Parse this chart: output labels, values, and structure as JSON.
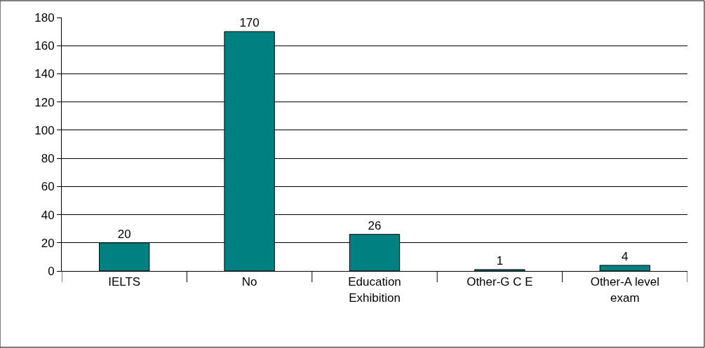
{
  "chart_data": {
    "type": "bar",
    "categories": [
      "IELTS",
      "No",
      "Education Exhibition",
      "Other-G C E",
      "Other-A level exam"
    ],
    "values": [
      20,
      170,
      26,
      1,
      4
    ],
    "color": "#008080",
    "ylim": [
      0,
      180
    ],
    "yticks": [
      0,
      20,
      40,
      60,
      80,
      100,
      120,
      140,
      160,
      180
    ],
    "grid": "y",
    "data_labels": true
  }
}
